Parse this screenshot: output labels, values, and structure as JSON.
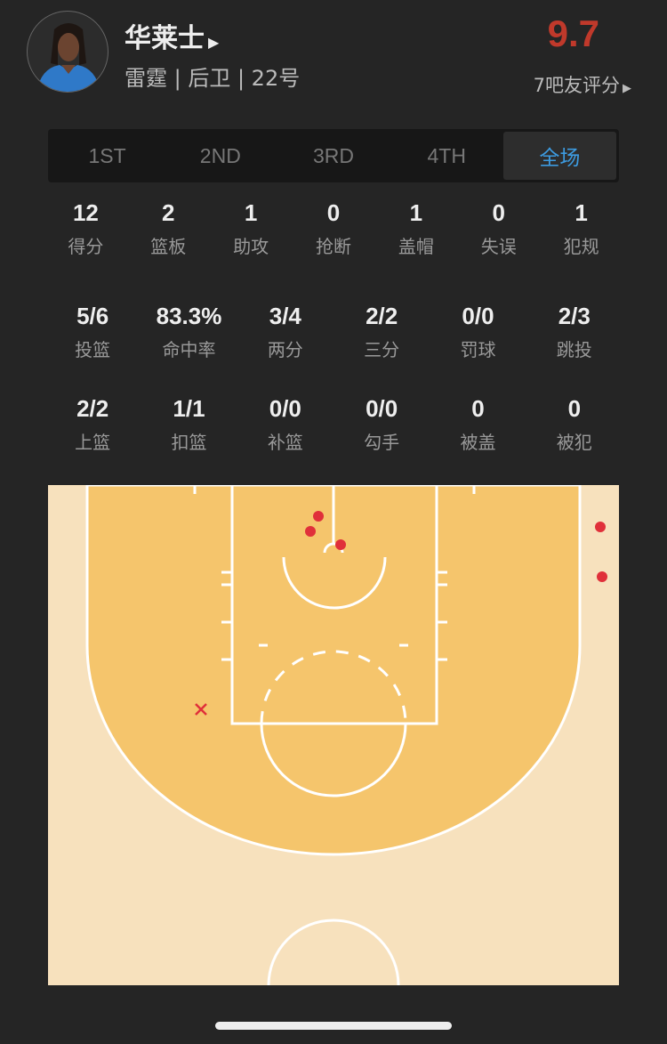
{
  "player": {
    "name": "华莱士",
    "info": "雷霆 | 后卫 | 22号",
    "rating": "9.7",
    "rating_label": "7吧友评分"
  },
  "tabs": [
    {
      "label": "1ST"
    },
    {
      "label": "2ND"
    },
    {
      "label": "3RD"
    },
    {
      "label": "4TH"
    },
    {
      "label": "全场",
      "active": true
    }
  ],
  "basic": [
    {
      "v": "12",
      "l": "得分"
    },
    {
      "v": "2",
      "l": "篮板"
    },
    {
      "v": "1",
      "l": "助攻"
    },
    {
      "v": "0",
      "l": "抢断"
    },
    {
      "v": "1",
      "l": "盖帽"
    },
    {
      "v": "0",
      "l": "失误"
    },
    {
      "v": "1",
      "l": "犯规"
    }
  ],
  "shooting": [
    {
      "v": "5/6",
      "l": "投篮"
    },
    {
      "v": "83.3%",
      "l": "命中率"
    },
    {
      "v": "3/4",
      "l": "两分"
    },
    {
      "v": "2/2",
      "l": "三分"
    },
    {
      "v": "0/0",
      "l": "罚球"
    },
    {
      "v": "2/3",
      "l": "跳投"
    }
  ],
  "shot_types": [
    {
      "v": "2/2",
      "l": "上篮"
    },
    {
      "v": "1/1",
      "l": "扣篮"
    },
    {
      "v": "0/0",
      "l": "补篮"
    },
    {
      "v": "0/0",
      "l": "勾手"
    },
    {
      "v": "0",
      "l": "被盖"
    },
    {
      "v": "0",
      "l": "被犯"
    }
  ],
  "colors": {
    "accent": "#3d9be0",
    "rating": "#c0392b",
    "court_inner": "#f5c56c",
    "court_outer": "#f7e1bd",
    "shot": "#e0303a"
  },
  "shot_chart": {
    "made": 5,
    "missed": 1
  }
}
